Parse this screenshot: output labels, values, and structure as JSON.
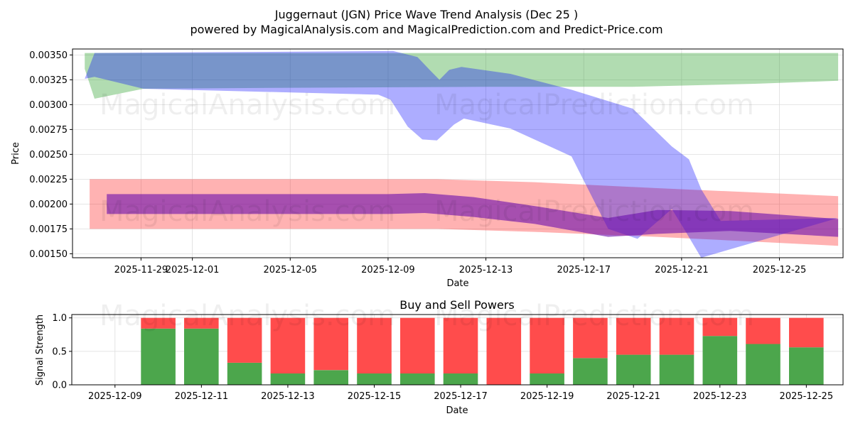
{
  "title": "Juggernaut (JGN) Price Wave Trend Analysis (Dec 25 )",
  "subtitle": "powered by MagicalAnalysis.com and MagicalPrediction.com and Predict-Price.com",
  "watermarks": [
    "MagicalAnalysis.com",
    "MagicalPrediction.com"
  ],
  "chart_data": [
    {
      "type": "area",
      "title": "",
      "xlabel": "Date",
      "ylabel": "Price",
      "x_start": "2025-11-27",
      "xlim": [
        -0.9,
        30.6
      ],
      "ylim": [
        0.00146,
        0.00356
      ],
      "grid": true,
      "x_ticks": [
        {
          "day": 1.9,
          "label": "2025-11-29"
        },
        {
          "day": 4,
          "label": "2025-12-01"
        },
        {
          "day": 8,
          "label": "2025-12-05"
        },
        {
          "day": 12,
          "label": "2025-12-09"
        },
        {
          "day": 16,
          "label": "2025-12-13"
        },
        {
          "day": 20,
          "label": "2025-12-17"
        },
        {
          "day": 24,
          "label": "2025-12-21"
        },
        {
          "day": 28,
          "label": "2025-12-25"
        }
      ],
      "y_ticks": [
        "0.00150",
        "0.00175",
        "0.00200",
        "0.00225",
        "0.00250",
        "0.00275",
        "0.00300",
        "0.00325",
        "0.00350"
      ],
      "y_tick_values": [
        0.0015,
        0.00175,
        0.002,
        0.00225,
        0.0025,
        0.00275,
        0.003,
        0.00325,
        0.0035
      ],
      "bands": [
        {
          "name": "green-band",
          "color": "#2ca02c",
          "opacity": 0.37,
          "upper": [
            [
              -0.4,
              0.00352
            ],
            [
              30.4,
              0.00352
            ]
          ],
          "lower": [
            [
              -0.4,
              0.00336
            ],
            [
              0,
              0.00306
            ],
            [
              2,
              0.00316
            ],
            [
              8,
              0.00317
            ],
            [
              16,
              0.00318
            ],
            [
              22,
              0.00318
            ],
            [
              27,
              0.00321
            ],
            [
              30.4,
              0.00324
            ]
          ]
        },
        {
          "name": "red-band",
          "color": "#ff0000",
          "opacity": 0.3,
          "upper": [
            [
              -0.2,
              0.00225
            ],
            [
              14,
              0.00225
            ],
            [
              18,
              0.00222
            ],
            [
              23,
              0.00216
            ],
            [
              30.4,
              0.00208
            ]
          ],
          "lower": [
            [
              -0.2,
              0.00175
            ],
            [
              14,
              0.00175
            ],
            [
              18,
              0.00172
            ],
            [
              23,
              0.00167
            ],
            [
              30.4,
              0.00158
            ]
          ]
        },
        {
          "name": "blue-band",
          "color": "#0000ff",
          "opacity": 0.32,
          "upper": [
            [
              -0.4,
              0.00326
            ],
            [
              0,
              0.00352
            ],
            [
              12.2,
              0.00354
            ],
            [
              13.2,
              0.00348
            ],
            [
              13.7,
              0.00335
            ],
            [
              14.1,
              0.00325
            ],
            [
              14.5,
              0.00335
            ],
            [
              15,
              0.00338
            ],
            [
              17,
              0.00331
            ],
            [
              19.5,
              0.00315
            ],
            [
              22,
              0.00296
            ],
            [
              23.6,
              0.00258
            ],
            [
              24.3,
              0.00245
            ],
            [
              24.8,
              0.00215
            ],
            [
              25.6,
              0.00183
            ],
            [
              30.4,
              0.00186
            ]
          ],
          "lower": [
            [
              -0.4,
              0.00326
            ],
            [
              0,
              0.00328
            ],
            [
              2,
              0.00316
            ],
            [
              11.6,
              0.0031
            ],
            [
              12.1,
              0.00305
            ],
            [
              12.8,
              0.00278
            ],
            [
              13.4,
              0.00265
            ],
            [
              14,
              0.00264
            ],
            [
              14.7,
              0.0028
            ],
            [
              15.1,
              0.00286
            ],
            [
              17,
              0.00276
            ],
            [
              19.5,
              0.00248
            ],
            [
              21,
              0.00175
            ],
            [
              22.2,
              0.00165
            ],
            [
              23.6,
              0.00195
            ],
            [
              24.1,
              0.00175
            ],
            [
              24.8,
              0.00146
            ]
          ]
        },
        {
          "name": "purple-wave",
          "color": "#6a0dad",
          "opacity": 0.6,
          "upper": [
            [
              0.5,
              0.0021
            ],
            [
              12,
              0.0021
            ],
            [
              13.5,
              0.00211
            ],
            [
              15.5,
              0.00207
            ],
            [
              18,
              0.00198
            ],
            [
              21,
              0.00186
            ],
            [
              23,
              0.00194
            ],
            [
              26,
              0.00193
            ],
            [
              30.4,
              0.00185
            ]
          ],
          "lower": [
            [
              0.5,
              0.0019
            ],
            [
              12,
              0.0019
            ],
            [
              13.5,
              0.00191
            ],
            [
              15.5,
              0.00187
            ],
            [
              18,
              0.0018
            ],
            [
              21,
              0.00167
            ],
            [
              23,
              0.0017
            ],
            [
              26,
              0.00173
            ],
            [
              30.4,
              0.00167
            ]
          ]
        }
      ]
    },
    {
      "type": "bar",
      "title": "Buy and Sell Powers",
      "xlabel": "Date",
      "ylabel": "Signal Strength",
      "ylim": [
        0,
        1.05
      ],
      "xlim": [
        -1,
        16.85
      ],
      "grid": true,
      "x_ticks": [
        {
          "day": 0,
          "label": "2025-12-09"
        },
        {
          "day": 2,
          "label": "2025-12-11"
        },
        {
          "day": 4,
          "label": "2025-12-13"
        },
        {
          "day": 6,
          "label": "2025-12-15"
        },
        {
          "day": 8,
          "label": "2025-12-17"
        },
        {
          "day": 10,
          "label": "2025-12-19"
        },
        {
          "day": 12,
          "label": "2025-12-21"
        },
        {
          "day": 14,
          "label": "2025-12-23"
        },
        {
          "day": 16,
          "label": "2025-12-25"
        }
      ],
      "y_ticks": [
        "0.0",
        "0.5",
        "1.0"
      ],
      "y_tick_values": [
        0,
        0.5,
        1.0
      ],
      "categories": [
        "2025-12-10",
        "2025-12-11",
        "2025-12-12",
        "2025-12-13",
        "2025-12-14",
        "2025-12-15",
        "2025-12-16",
        "2025-12-17",
        "2025-12-18",
        "2025-12-19",
        "2025-12-20",
        "2025-12-21",
        "2025-12-22",
        "2025-12-23",
        "2025-12-24",
        "2025-12-25"
      ],
      "category_days": [
        1,
        2,
        3,
        4,
        5,
        6,
        7,
        8,
        9,
        10,
        11,
        12,
        13,
        14,
        15,
        16
      ],
      "series": [
        {
          "name": "Buy",
          "color": "#4ca64c",
          "values": [
            0.84,
            0.84,
            0.33,
            0.17,
            0.22,
            0.17,
            0.17,
            0.17,
            0.0,
            0.17,
            0.4,
            0.45,
            0.45,
            0.73,
            0.61,
            0.56
          ]
        },
        {
          "name": "Sell",
          "color": "#ff4c4c",
          "values": [
            0.16,
            0.16,
            0.67,
            0.83,
            0.78,
            0.83,
            0.83,
            0.83,
            1.0,
            0.83,
            0.6,
            0.55,
            0.55,
            0.27,
            0.39,
            0.44
          ]
        }
      ]
    }
  ]
}
